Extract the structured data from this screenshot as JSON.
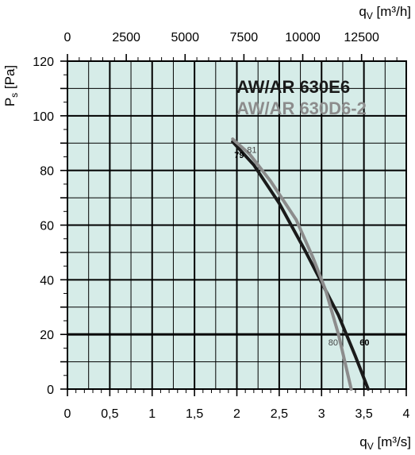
{
  "chart_data": {
    "type": "line",
    "background_color": "#d6ece8",
    "grid": true,
    "x": {
      "label": "q",
      "label_sub": "V",
      "label_unit": "[m³/s]",
      "range": [
        0,
        4
      ],
      "major_ticks": [
        0,
        0.5,
        1,
        1.5,
        2,
        2.5,
        3,
        3.5,
        4
      ],
      "tick_labels": [
        "0",
        "0,5",
        "1",
        "1,5",
        "2",
        "2,5",
        "3",
        "3,5",
        "4"
      ]
    },
    "x2": {
      "label": "q",
      "label_sub": "V",
      "label_unit": "[m³/h]",
      "tick_values_m3h": [
        0,
        2500,
        5000,
        7500,
        10000,
        12500
      ],
      "tick_labels": [
        "0",
        "2500",
        "5000",
        "7500",
        "10000",
        "12500"
      ]
    },
    "y": {
      "label": "P",
      "label_sub": "s",
      "label_unit": "[Pa]",
      "range": [
        0,
        120
      ],
      "major_ticks": [
        0,
        20,
        40,
        60,
        80,
        100,
        120
      ],
      "tick_labels": [
        "0",
        "20",
        "40",
        "60",
        "80",
        "100",
        "120"
      ]
    },
    "highlight_line": {
      "y": 20
    },
    "series": [
      {
        "name": "AW/AR 630E6",
        "color": "#1a1a1a",
        "x": [
          1.95,
          2.2,
          2.5,
          2.8,
          3.0,
          3.2,
          3.4,
          3.55
        ],
        "y": [
          90.5,
          82,
          68,
          51,
          39,
          27,
          12,
          0
        ],
        "annotations": [
          {
            "text": "79",
            "x": 1.97,
            "y": 84.5
          },
          {
            "text": "60",
            "x": 3.45,
            "y": 16
          }
        ]
      },
      {
        "name": "AW/AR 630D6-2",
        "color": "#8c8c8c",
        "x": [
          1.95,
          2.15,
          2.4,
          2.7,
          2.9,
          3.05,
          3.2,
          3.35
        ],
        "y": [
          91.5,
          86,
          76,
          62,
          48,
          36,
          20,
          0
        ],
        "annotations": [
          {
            "text": "81",
            "x": 2.12,
            "y": 86.5
          },
          {
            "text": "80",
            "x": 3.08,
            "y": 16
          }
        ]
      }
    ]
  }
}
